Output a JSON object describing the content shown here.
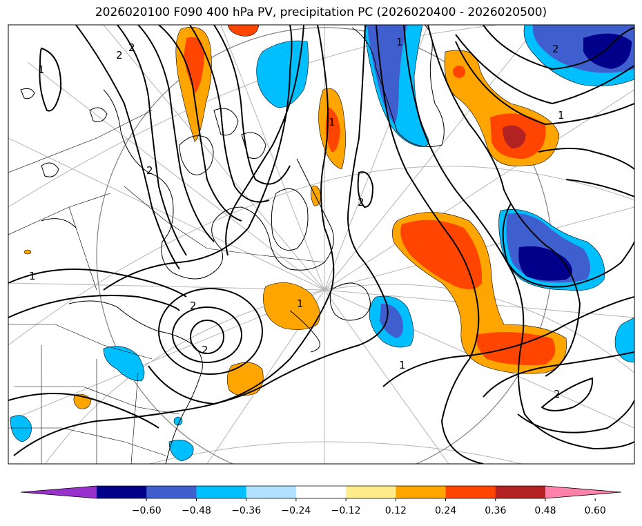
{
  "title": "2026020100 F090 400 hPa PV, precipitation PC (2026020400 - 2026020500)",
  "contour_labels": [
    "2",
    "2",
    "1",
    "2",
    "1",
    "2",
    "2",
    "2",
    "1",
    "1",
    "1",
    "2",
    "1",
    "2",
    "1"
  ],
  "colorbar": {
    "colors": [
      "#9932cc",
      "#00008b",
      "#3f5fcf",
      "#00bfff",
      "#b0e2ff",
      "#ffffff",
      "#ffec8b",
      "#ffa500",
      "#ff4500",
      "#b22222",
      "#ff82ab"
    ],
    "ticks": [
      "−0.60",
      "−0.48",
      "−0.36",
      "−0.24",
      "−0.12",
      "0.12",
      "0.24",
      "0.36",
      "0.48",
      "0.60"
    ]
  }
}
